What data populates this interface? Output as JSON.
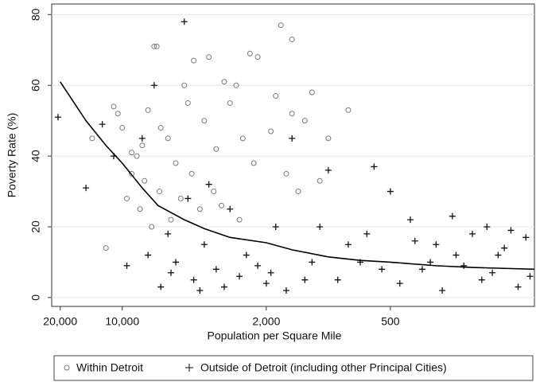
{
  "chart_data": {
    "type": "scatter",
    "x_label": "Population per Square Mile",
    "y_label": "Poverty Rate (%)",
    "xlim": [
      22000,
      100
    ],
    "ylim": [
      -2.5,
      83
    ],
    "x_log": true,
    "grid": true,
    "xticks": [
      {
        "value": 20000,
        "label": "20,000"
      },
      {
        "value": 10000,
        "label": "10,000"
      },
      {
        "value": 2000,
        "label": "2,000"
      },
      500
    ],
    "yticks": [
      0,
      20,
      40,
      60,
      80
    ],
    "series": [
      {
        "name": "Within Detroit",
        "marker": "circle",
        "color": "#7a7a7a",
        "x": [
          14000,
          11000,
          10500,
          10000,
          9000,
          12000,
          9500,
          9000,
          8500,
          8000,
          7500,
          7000,
          6800,
          6500,
          6000,
          5500,
          5000,
          4800,
          4500,
          4000,
          3800,
          3500,
          3200,
          3000,
          2800,
          2600,
          2400,
          2200,
          1700,
          1900,
          1800,
          1500,
          1600,
          1500,
          1300,
          1200,
          1100,
          1000,
          800,
          8200,
          7800,
          7200,
          6600,
          5800,
          5200,
          4600,
          4200,
          3600,
          3300,
          2700,
          2300,
          1400
        ],
        "values": [
          45,
          54,
          52,
          48,
          41,
          14,
          28,
          35,
          40,
          43,
          53,
          71,
          71,
          48,
          45,
          38,
          60,
          55,
          67,
          50,
          68,
          42,
          61,
          55,
          60,
          45,
          69,
          68,
          77,
          47,
          57,
          73,
          35,
          52,
          50,
          58,
          33,
          45,
          53,
          25,
          33,
          20,
          30,
          22,
          28,
          35,
          25,
          30,
          26,
          22,
          38,
          30
        ]
      },
      {
        "name": "Outside of Detroit (including other Principal Cities)",
        "marker": "plus",
        "color": "#111111",
        "x": [
          20500,
          15000,
          12500,
          11000,
          9500,
          8000,
          7000,
          6000,
          5000,
          5500,
          4500,
          4000,
          3500,
          3000,
          2500,
          2000,
          1800,
          1500,
          1200,
          1000,
          900,
          800,
          600,
          500,
          400,
          350,
          300,
          250,
          200,
          180,
          150,
          130,
          120,
          110,
          6500,
          5800,
          4200,
          3200,
          2700,
          2200,
          1600,
          1300,
          700,
          450,
          320,
          280,
          220,
          160,
          140,
          105,
          7500,
          4800,
          3800,
          1900,
          1100,
          650,
          550,
          380,
          240,
          170
        ],
        "values": [
          51,
          31,
          49,
          40,
          9,
          45,
          60,
          18,
          78,
          10,
          5,
          15,
          8,
          25,
          12,
          4,
          20,
          45,
          10,
          36,
          5,
          15,
          37,
          30,
          22,
          8,
          15,
          23,
          18,
          5,
          12,
          19,
          3,
          17,
          3,
          7,
          2,
          3,
          6,
          9,
          2,
          5,
          10,
          4,
          10,
          2,
          9,
          7,
          14,
          6,
          12,
          28,
          32,
          7,
          20,
          18,
          8,
          16,
          12,
          20
        ]
      }
    ],
    "fit": {
      "x": [
        20000,
        15000,
        12000,
        10000,
        8000,
        6700,
        5000,
        4000,
        3000,
        2000,
        1500,
        1000,
        700,
        500,
        300,
        200,
        150,
        100
      ],
      "values": [
        61,
        50,
        43,
        38,
        31,
        26,
        22,
        19.5,
        17,
        15.5,
        13.5,
        11.5,
        10.5,
        10,
        9,
        8.5,
        8.3,
        8
      ]
    }
  }
}
